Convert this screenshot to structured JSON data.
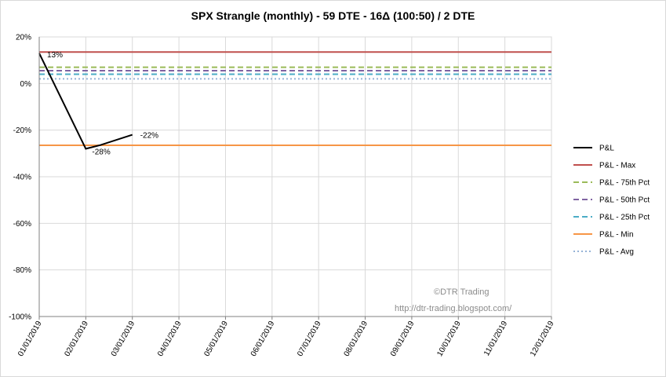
{
  "chart_data": {
    "type": "line",
    "title": "SPX Strangle (monthly) - 59 DTE - 16Δ  (100:50) / 2 DTE",
    "xlabel": "",
    "ylabel": "",
    "x": [
      "01/01/2019",
      "02/01/2019",
      "03/01/2019",
      "04/01/2019",
      "05/01/2019",
      "06/01/2019",
      "07/01/2019",
      "08/01/2019",
      "09/01/2019",
      "10/01/2019",
      "11/01/2019",
      "12/01/2019"
    ],
    "ylim": [
      -100,
      20
    ],
    "yticks": [
      20,
      0,
      -20,
      -40,
      -60,
      -80,
      -100
    ],
    "ytick_labels": [
      "20%",
      "0%",
      "-20%",
      "-40%",
      "-60%",
      "-80%",
      "-100%"
    ],
    "grid": true,
    "legend_position": "right",
    "series": [
      {
        "name": "P&L",
        "style": "solid",
        "color": "#000000",
        "points": [
          [
            0,
            13
          ],
          [
            1,
            -28
          ],
          [
            1.3,
            -26.5
          ],
          [
            2,
            -22
          ]
        ]
      },
      {
        "name": "P&L - Max",
        "style": "solid",
        "color": "#c0504d",
        "value": 13.5
      },
      {
        "name": "P&L - 75th Pct",
        "style": "dashed",
        "color": "#9bbb59",
        "value": 7
      },
      {
        "name": "P&L - 50th Pct",
        "style": "dashed",
        "color": "#8064a2",
        "value": 5.5
      },
      {
        "name": "P&L - 25th Pct",
        "style": "dashed",
        "color": "#4bacc6",
        "value": 4
      },
      {
        "name": "P&L - Min",
        "style": "solid",
        "color": "#f79646",
        "value": -26.5
      },
      {
        "name": "P&L - Avg",
        "style": "dotted",
        "color": "#95b3d7",
        "value": 2
      }
    ],
    "data_labels": [
      {
        "text": "13%",
        "x": 0,
        "y": 13
      },
      {
        "text": "-28%",
        "x": 1,
        "y": -28
      },
      {
        "text": "-22%",
        "x": 2,
        "y": -22
      }
    ],
    "annotations": [
      "©DTR Trading",
      "http://dtr-trading.blogspot.com/"
    ]
  }
}
